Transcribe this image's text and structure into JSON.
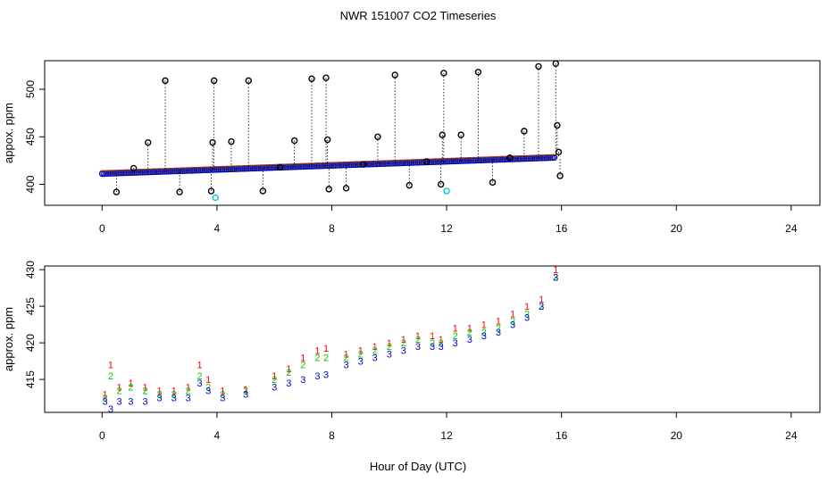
{
  "title": "NWR  151007  CO2 Timeseries",
  "xlabel": "Hour of Day (UTC)",
  "colors": {
    "background": "#ffffff",
    "axis": "#000000",
    "dots": "#000000",
    "series1": "#ff0000",
    "series2": "#00cc00",
    "series3": "#0000cc",
    "highlight": "#00cccc"
  },
  "chart_data": [
    {
      "type": "scatter",
      "panel": "top",
      "ylabel": "appox. ppm",
      "xlim": [
        -2,
        25
      ],
      "ylim": [
        378,
        530
      ],
      "xticks": [
        0,
        4,
        8,
        12,
        16,
        20,
        24
      ],
      "yticks": [
        400,
        450,
        500
      ],
      "marker": "o",
      "series": [
        {
          "color": "#000000",
          "points": [
            [
              0.5,
              392
            ],
            [
              1.1,
              417
            ],
            [
              1.6,
              444
            ],
            [
              2.2,
              509
            ],
            [
              2.7,
              392
            ],
            [
              3.8,
              393
            ],
            [
              3.85,
              444
            ],
            [
              3.9,
              509
            ],
            [
              4.5,
              445
            ],
            [
              5.1,
              509
            ],
            [
              5.6,
              393
            ],
            [
              6.2,
              418
            ],
            [
              6.7,
              446
            ],
            [
              7.3,
              511
            ],
            [
              7.8,
              512
            ],
            [
              7.85,
              447
            ],
            [
              7.9,
              395
            ],
            [
              8.5,
              396
            ],
            [
              9.1,
              421
            ],
            [
              9.6,
              450
            ],
            [
              10.2,
              515
            ],
            [
              10.7,
              399
            ],
            [
              11.3,
              424
            ],
            [
              11.8,
              400
            ],
            [
              11.85,
              452
            ],
            [
              11.9,
              517
            ],
            [
              12.5,
              452
            ],
            [
              13.1,
              518
            ],
            [
              13.6,
              402
            ],
            [
              14.2,
              428
            ],
            [
              14.7,
              456
            ],
            [
              15.2,
              524
            ],
            [
              15.8,
              527
            ],
            [
              15.85,
              462
            ],
            [
              15.9,
              434
            ],
            [
              15.95,
              409
            ]
          ]
        },
        {
          "color": "#00cccc",
          "points": [
            [
              3.95,
              386
            ],
            [
              12.0,
              393
            ]
          ]
        }
      ],
      "baseline": {
        "x": [
          0,
          15.8
        ],
        "start": 411,
        "end": 428
      }
    },
    {
      "type": "scatter",
      "panel": "bottom",
      "ylabel": "approx. ppm",
      "xlim": [
        -2,
        25
      ],
      "ylim": [
        410.5,
        430.5
      ],
      "xticks": [
        0,
        4,
        8,
        12,
        16,
        20,
        24
      ],
      "yticks": [
        415,
        420,
        425,
        430
      ],
      "series": [
        {
          "marker": "1",
          "color": "#ff0000",
          "values": [
            [
              0.1,
              413
            ],
            [
              0.3,
              417
            ],
            [
              0.6,
              414
            ],
            [
              1.0,
              414.5
            ],
            [
              1.5,
              414
            ],
            [
              2.0,
              413.5
            ],
            [
              2.5,
              413.5
            ],
            [
              3.0,
              414
            ],
            [
              3.4,
              417
            ],
            [
              3.7,
              415
            ],
            [
              4.2,
              413.5
            ],
            [
              5.0,
              413.7
            ],
            [
              6.0,
              415.5
            ],
            [
              6.5,
              416.5
            ],
            [
              7.0,
              418
            ],
            [
              7.5,
              419
            ],
            [
              7.8,
              419.3
            ],
            [
              8.5,
              418.5
            ],
            [
              9.0,
              419
            ],
            [
              9.5,
              419.5
            ],
            [
              10.0,
              420
            ],
            [
              10.5,
              420.5
            ],
            [
              11.0,
              421
            ],
            [
              11.5,
              421
            ],
            [
              11.8,
              420.5
            ],
            [
              12.3,
              422
            ],
            [
              12.8,
              422
            ],
            [
              13.3,
              422.5
            ],
            [
              13.8,
              423
            ],
            [
              14.3,
              424
            ],
            [
              14.8,
              425
            ],
            [
              15.3,
              426
            ],
            [
              15.8,
              430
            ]
          ]
        },
        {
          "marker": "2",
          "color": "#00cc00",
          "values": [
            [
              0.1,
              412.5
            ],
            [
              0.3,
              415.5
            ],
            [
              0.6,
              413.5
            ],
            [
              1.0,
              414
            ],
            [
              1.5,
              413.5
            ],
            [
              2.0,
              413
            ],
            [
              2.5,
              413
            ],
            [
              3.0,
              413.5
            ],
            [
              3.4,
              415.5
            ],
            [
              3.7,
              414
            ],
            [
              4.2,
              413
            ],
            [
              5.0,
              413.5
            ],
            [
              6.0,
              415
            ],
            [
              6.5,
              416
            ],
            [
              7.0,
              417
            ],
            [
              7.5,
              418
            ],
            [
              7.8,
              418
            ],
            [
              8.5,
              418
            ],
            [
              9.0,
              418.5
            ],
            [
              9.5,
              419
            ],
            [
              10.0,
              419.5
            ],
            [
              10.5,
              420
            ],
            [
              11.0,
              420.5
            ],
            [
              11.5,
              420
            ],
            [
              11.8,
              420
            ],
            [
              12.3,
              421
            ],
            [
              12.8,
              421.5
            ],
            [
              13.3,
              421.5
            ],
            [
              13.8,
              422
            ],
            [
              14.3,
              423
            ],
            [
              14.8,
              424
            ],
            [
              15.3,
              425
            ],
            [
              15.8,
              429
            ]
          ]
        },
        {
          "marker": "3",
          "color": "#0000cc",
          "values": [
            [
              0.1,
              412
            ],
            [
              0.3,
              411
            ],
            [
              0.6,
              412
            ],
            [
              1.0,
              412
            ],
            [
              1.5,
              412
            ],
            [
              2.0,
              412.5
            ],
            [
              2.5,
              412.5
            ],
            [
              3.0,
              412.5
            ],
            [
              3.4,
              414.5
            ],
            [
              3.7,
              413.5
            ],
            [
              4.2,
              412.5
            ],
            [
              5.0,
              413
            ],
            [
              6.0,
              414
            ],
            [
              6.5,
              414.5
            ],
            [
              7.0,
              415
            ],
            [
              7.5,
              415.5
            ],
            [
              7.8,
              415.7
            ],
            [
              8.5,
              417
            ],
            [
              9.0,
              417.5
            ],
            [
              9.5,
              418
            ],
            [
              10.0,
              418.5
            ],
            [
              10.5,
              419
            ],
            [
              11.0,
              419.5
            ],
            [
              11.5,
              419.5
            ],
            [
              11.8,
              419.5
            ],
            [
              12.3,
              420
            ],
            [
              12.8,
              420.5
            ],
            [
              13.3,
              421
            ],
            [
              13.8,
              421.5
            ],
            [
              14.3,
              422.5
            ],
            [
              14.8,
              423.5
            ],
            [
              15.3,
              425
            ],
            [
              15.8,
              429
            ]
          ]
        }
      ]
    }
  ]
}
